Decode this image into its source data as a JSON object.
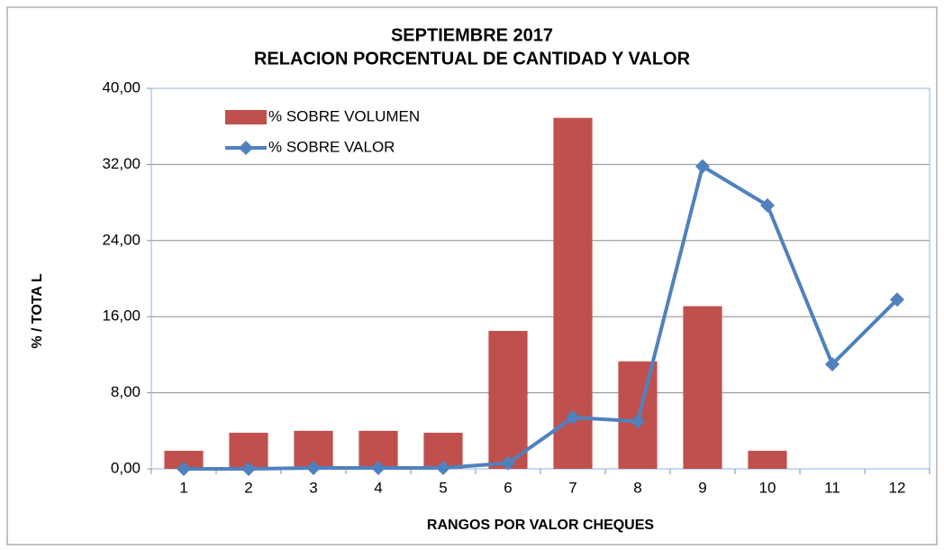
{
  "chart_data": {
    "type": "bar",
    "title": "SEPTIEMBRE  2017",
    "subtitle": "RELACION PORCENTUAL DE CANTIDAD Y VALOR",
    "x_label": "RANGOS POR VALOR CHEQUES",
    "y_label": "%  /   TOTA L",
    "categories": [
      "1",
      "2",
      "3",
      "4",
      "5",
      "6",
      "7",
      "8",
      "9",
      "10",
      "11",
      "12"
    ],
    "series": [
      {
        "name": "% SOBRE VOLUMEN",
        "type": "bar",
        "color": "#c0504d",
        "values": [
          1.9,
          3.8,
          4.0,
          4.0,
          3.8,
          14.5,
          36.9,
          11.3,
          17.1,
          1.9,
          0,
          0
        ]
      },
      {
        "name": "% SOBRE VALOR",
        "type": "line",
        "color": "#4f81bd",
        "values": [
          0,
          0,
          0.1,
          0.1,
          0.1,
          0.6,
          5.4,
          5.0,
          31.8,
          27.7,
          11.0,
          17.8
        ]
      }
    ],
    "ylim": [
      0,
      40
    ],
    "yticks": [
      {
        "value": 0,
        "label": "0,00"
      },
      {
        "value": 8,
        "label": "8,00"
      },
      {
        "value": 16,
        "label": "16,00"
      },
      {
        "value": 24,
        "label": "24,00"
      },
      {
        "value": 32,
        "label": "32,00"
      },
      {
        "value": 40,
        "label": "40,00"
      }
    ],
    "grid": true,
    "legend": "upper left"
  }
}
